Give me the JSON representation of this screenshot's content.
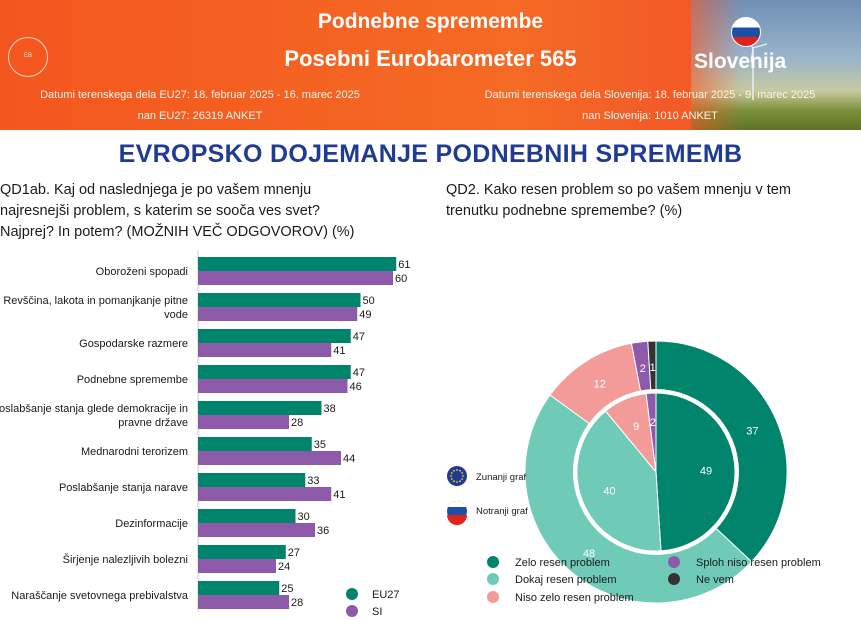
{
  "header": {
    "title": "Podnebne spremembe",
    "subtitle": "Posebni Eurobarometer 565",
    "country": "Slovenija",
    "logo_text": "EB",
    "eu_dates": "Datumi terenskega dela EU27: 18. februar 2025 - 16. marec 2025",
    "eu_n": "nan EU27: 26319 ANKET",
    "si_dates": "Datumi terenskega dela Slovenija: 18. februar 2025 - 9. marec 2025",
    "si_n": "nan Slovenija: 1010 ANKET"
  },
  "main_title": "EVROPSKO DOJEMANJE PODNEBNIH SPREMEMB",
  "colors": {
    "eu": "#00846b",
    "si": "#8c5aa8",
    "header": "#f4561f",
    "title": "#1f3b96"
  },
  "chart_data": [
    {
      "type": "bar",
      "title": "QD1ab. Kaj od naslednjega je po vašem mnenju najresnejši problem, s katerim se sooča ves svet? Najprej? In potem? (MOŽNIH VEČ ODGOVOROV) (%)",
      "title_lines": [
        "QD1ab. Kaj od naslednjega je po vašem mnenju",
        "najresnejši problem, s katerim se sooča ves svet?",
        "Najprej? In potem? (MOŽNIH VEČ ODGOVOROV) (%)"
      ],
      "orientation": "horizontal",
      "xlim": [
        0,
        61
      ],
      "categories": [
        [
          "Oboroženi spopadi"
        ],
        [
          "Revščina, lakota in pomanjkanje pitne",
          "vode"
        ],
        [
          "Gospodarske razmere"
        ],
        [
          "Podnebne spremembe"
        ],
        [
          "Poslabšanje stanja glede demokracije in",
          "pravne države"
        ],
        [
          "Mednarodni terorizem"
        ],
        [
          "Poslabšanje stanja narave"
        ],
        [
          "Dezinformacije"
        ],
        [
          "Širjenje nalezljivih bolezni"
        ],
        [
          "Naraščanje svetovnega prebivalstva"
        ]
      ],
      "series": [
        {
          "name": "EU27",
          "color": "#00846b",
          "values": [
            61,
            50,
            47,
            47,
            38,
            35,
            33,
            30,
            27,
            25
          ]
        },
        {
          "name": "SI",
          "color": "#8c5aa8",
          "values": [
            60,
            49,
            41,
            46,
            28,
            44,
            41,
            36,
            24,
            28
          ]
        }
      ],
      "legend": "bottom-right"
    },
    {
      "type": "pie",
      "title": "QD2. Kako resen problem so po vašem mnenju v tem trenutku podnebne spremembe? (%)",
      "title_lines": [
        "QD2. Kako resen problem so po vašem mnenju v tem",
        "trenutku podnebne spremembe? (%)"
      ],
      "categories": [
        "Zelo resen problem",
        "Dokaj resen problem",
        "Niso zelo resen problem",
        "Sploh niso resen problem",
        "Ne vem"
      ],
      "colors": [
        "#00846b",
        "#6fcab8",
        "#f39b98",
        "#8c5aa8",
        "#333333"
      ],
      "series": [
        {
          "name": "Zunanji graf",
          "flag": "EU",
          "values": [
            37,
            48,
            12,
            2,
            1
          ]
        },
        {
          "name": "Notranji graf",
          "flag": "SI",
          "values": [
            49,
            40,
            9,
            2,
            0
          ]
        }
      ],
      "legend": "bottom"
    }
  ]
}
